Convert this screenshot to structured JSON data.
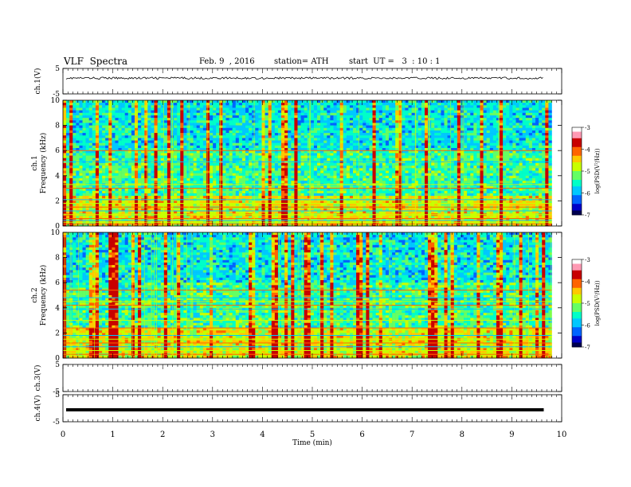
{
  "header": {
    "title": "VLF  Spectra",
    "date": "Feb. 9  , 2016",
    "station": "station= ATH",
    "start": "start  UT =   3  : 10 : 1"
  },
  "chart_data": [
    {
      "type": "line",
      "panel": "ch1-waveform",
      "ylabel": "ch.1(V)",
      "ylim": [
        -5,
        5
      ],
      "yticks": [
        "5",
        "-5"
      ],
      "description_values": {
        "baseline": 1.2,
        "noise_amplitude": 0.4
      }
    },
    {
      "type": "heatmap",
      "panel": "ch1-spectrogram",
      "ylabel": "Frequency  (kHz)",
      "channel_label": "ch.1",
      "ylim": [
        0,
        10
      ],
      "yticks": [
        "0",
        "2",
        "4",
        "6",
        "8",
        "10"
      ],
      "colorbar": {
        "label": "log(PSD(V²/Hz))",
        "range": [
          -7,
          -3
        ],
        "ticks": [
          "-3",
          "-4",
          "-5",
          "-6",
          "-7"
        ]
      },
      "hum_lines_khz": [
        0.15,
        0.3,
        0.45,
        0.6,
        0.9,
        1.2,
        1.5,
        1.8,
        2.1,
        3.0,
        3.3,
        5.1,
        6.0
      ]
    },
    {
      "type": "heatmap",
      "panel": "ch2-spectrogram",
      "ylabel": "Frequency  (kHz)",
      "channel_label": "ch.2",
      "ylim": [
        0,
        10
      ],
      "yticks": [
        "0",
        "2",
        "4",
        "6",
        "8",
        "10"
      ],
      "colorbar": {
        "label": "log(PSD(V²/Hz))",
        "range": [
          -7,
          -3
        ],
        "ticks": [
          "-3",
          "-4",
          "-5",
          "-6",
          "-7"
        ]
      },
      "hum_lines_khz": [
        0.3,
        0.6,
        0.9,
        1.2,
        1.5,
        1.8,
        2.4,
        3.0,
        3.9,
        4.2,
        4.5,
        4.8,
        5.4
      ]
    },
    {
      "type": "line",
      "panel": "ch3-waveform",
      "ylabel": "ch.3(V)",
      "ylim": [
        -5,
        5
      ],
      "yticks": [
        "5",
        "-5"
      ],
      "description_values": {
        "baseline": null
      }
    },
    {
      "type": "line",
      "panel": "ch4-waveform",
      "ylabel": "ch.4(V)",
      "ylim": [
        -5,
        5
      ],
      "yticks": [
        "5",
        "-5"
      ],
      "description_values": {
        "baseline": -0.6
      }
    }
  ],
  "xaxis": {
    "xlabel": "Time  (min)",
    "xlim": [
      0,
      10
    ],
    "ticks": [
      "0",
      "1",
      "2",
      "3",
      "4",
      "5",
      "6",
      "7",
      "8",
      "9",
      "10"
    ],
    "data_end": 9.8
  },
  "colors": {
    "colormap": [
      "#000050",
      "#0000c8",
      "#0064ff",
      "#00c8ff",
      "#00ffc8",
      "#64ff64",
      "#c8ff00",
      "#ffc800",
      "#ff6400",
      "#c80000",
      "#ff9ab4",
      "#ffffff"
    ]
  }
}
